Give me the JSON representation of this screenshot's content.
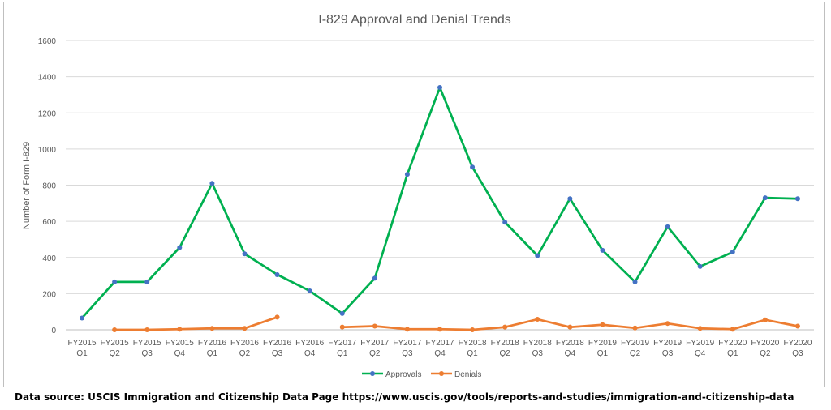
{
  "chart_data": {
    "type": "line",
    "title": "I-829 Approval and Denial Trends",
    "xlabel": "",
    "ylabel": "Number  of Form I-829",
    "ylim": [
      0,
      1600
    ],
    "yticks": [
      0,
      200,
      400,
      600,
      800,
      1000,
      1200,
      1400,
      1600
    ],
    "grid": true,
    "legend_position": "bottom",
    "categories": [
      [
        "FY2015",
        "Q1"
      ],
      [
        "FY2015",
        "Q2"
      ],
      [
        "FY2015",
        "Q3"
      ],
      [
        "FY2015",
        "Q4"
      ],
      [
        "FY2016",
        "Q1"
      ],
      [
        "FY2016",
        "Q2"
      ],
      [
        "FY2016",
        "Q3"
      ],
      [
        "FY2016",
        "Q4"
      ],
      [
        "FY2017",
        "Q1"
      ],
      [
        "FY2017",
        "Q2"
      ],
      [
        "FY2017",
        "Q3"
      ],
      [
        "FY2017",
        "Q4"
      ],
      [
        "FY2018",
        "Q1"
      ],
      [
        "FY2018",
        "Q2"
      ],
      [
        "FY2018",
        "Q3"
      ],
      [
        "FY2018",
        "Q4"
      ],
      [
        "FY2019",
        "Q1"
      ],
      [
        "FY2019",
        "Q2"
      ],
      [
        "FY2019",
        "Q3"
      ],
      [
        "FY2019",
        "Q4"
      ],
      [
        "FY2020",
        "Q1"
      ],
      [
        "FY2020",
        "Q2"
      ],
      [
        "FY2020",
        "Q3"
      ]
    ],
    "series": [
      {
        "name": "Approvals",
        "line_color": "#00b050",
        "marker_color": "#4472c4",
        "values": [
          65,
          265,
          265,
          455,
          810,
          420,
          305,
          215,
          90,
          285,
          860,
          1340,
          900,
          595,
          410,
          725,
          440,
          265,
          570,
          350,
          430,
          730,
          725
        ]
      },
      {
        "name": "Denials",
        "line_color": "#ed7d31",
        "marker_color": "#ed7d31",
        "values": [
          null,
          0,
          0,
          3,
          8,
          8,
          70,
          null,
          15,
          20,
          3,
          3,
          0,
          15,
          58,
          15,
          28,
          10,
          35,
          8,
          3,
          55,
          20
        ]
      }
    ]
  },
  "source_note": "Data source: USCIS Immigration and Citizenship Data Page https://www.uscis.gov/tools/reports-and-studies/immigration-and-citizenship-data"
}
